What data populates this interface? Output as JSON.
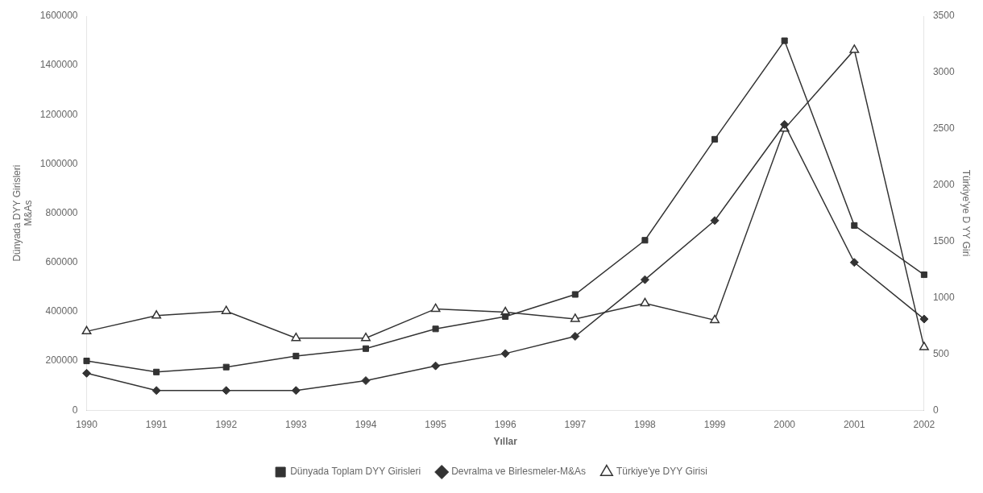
{
  "chart_data": {
    "type": "line",
    "xlabel": "Yıllar",
    "ylabel": [
      "Dünyada DYY Girisleri",
      "M&As"
    ],
    "y2label": "Türkiye'ye D YY Giri",
    "categories": [
      "1990",
      "1991",
      "1992",
      "1993",
      "1994",
      "1995",
      "1996",
      "1997",
      "1998",
      "1999",
      "2000",
      "2001",
      "2002"
    ],
    "series": [
      {
        "name": "Dünyada Toplam DYY Girisleri",
        "color": "#333333",
        "marker": "square",
        "axis": "y",
        "values": [
          200000,
          155000,
          175000,
          220000,
          250000,
          330000,
          380000,
          470000,
          690000,
          1100000,
          1500000,
          750000,
          550000
        ]
      },
      {
        "name": "Devralma ve Birlesmeler-M&As",
        "color": "#333333",
        "marker": "diamond",
        "axis": "y",
        "values": [
          150000,
          80000,
          80000,
          80000,
          120000,
          180000,
          230000,
          300000,
          530000,
          770000,
          1160000,
          600000,
          370000
        ]
      },
      {
        "name": "Türkiye'ye DYY Girisi",
        "color": "#333333",
        "marker": "open-triangle",
        "axis": "y2",
        "values": [
          700,
          840,
          880,
          640,
          640,
          900,
          870,
          810,
          950,
          800,
          2500,
          3200,
          560
        ]
      }
    ],
    "ylim": [
      0,
      1600000
    ],
    "yticks": [
      0,
      200000,
      400000,
      600000,
      800000,
      1000000,
      1200000,
      1400000,
      1600000
    ],
    "y2lim": [
      0,
      3500
    ],
    "y2ticks": [
      0,
      500,
      1000,
      1500,
      2000,
      2500,
      3000,
      3500
    ],
    "grid": false,
    "legend": "bottom"
  }
}
